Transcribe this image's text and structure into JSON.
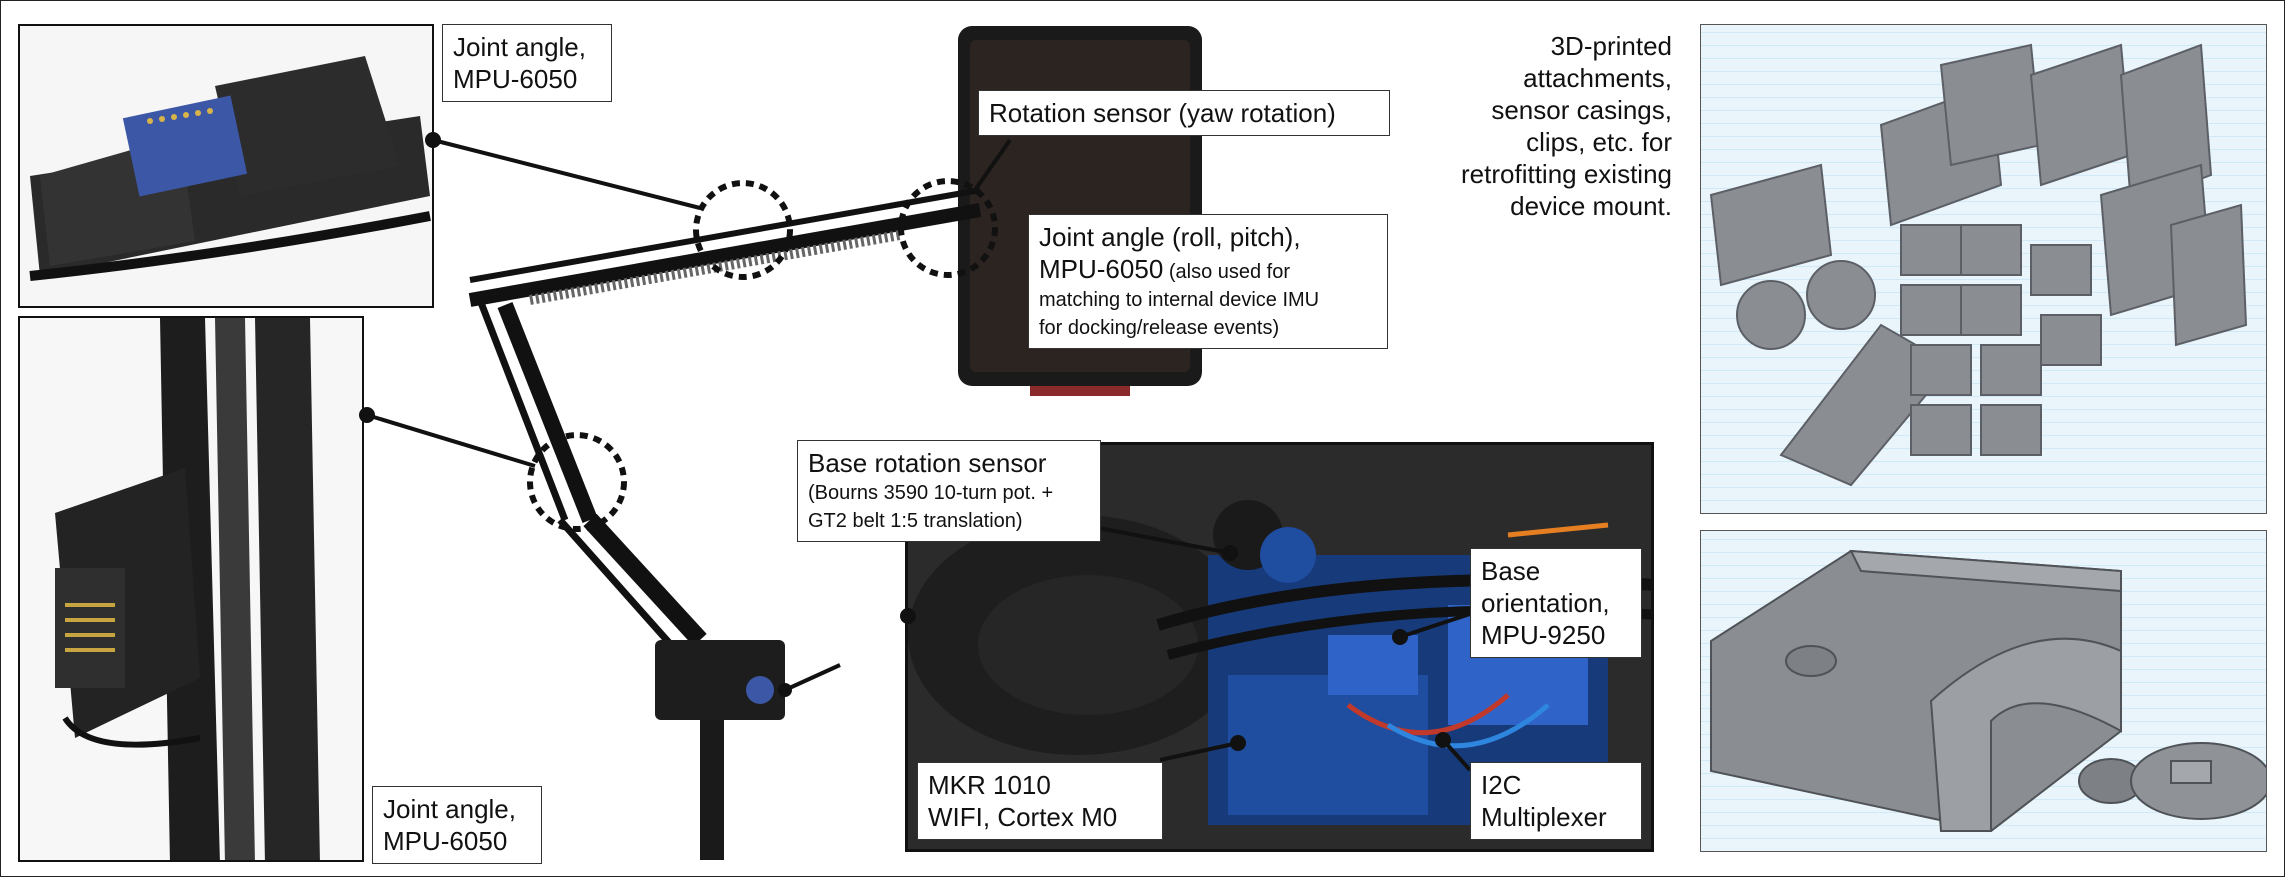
{
  "labels": {
    "joint_angle_top": {
      "line1": "Joint angle,",
      "line2": "MPU-6050"
    },
    "rotation_sensor": "Rotation sensor (yaw rotation)",
    "joint_angle_roll_pitch": {
      "line1": "Joint angle (roll, pitch),",
      "line2a": "MPU-6050",
      "line2b": " (also used for",
      "line3": "matching to internal device IMU",
      "line4": "for docking/release events)"
    },
    "base_rotation": {
      "line1": "Base rotation sensor",
      "line2": "(Bourns 3590 10-turn pot. +",
      "line3": "GT2 belt 1:5 translation)"
    },
    "base_orientation": {
      "line1": "Base",
      "line2": "orientation,",
      "line3": "MPU-9250"
    },
    "mkr1010": {
      "line1": "MKR 1010",
      "line2": "WIFI, Cortex M0"
    },
    "i2c": {
      "line1": "I2C",
      "line2": "Multiplexer"
    },
    "joint_angle_bottom": {
      "line1": "Joint angle,",
      "line2": "MPU-6050"
    }
  },
  "note": {
    "line1": "3D-printed",
    "line2": "attachments,",
    "line3": "sensor casings,",
    "line4": "clips, etc. for",
    "line5": "retrofitting existing",
    "line6": "device mount."
  },
  "colors": {
    "background": "#ffffff",
    "line": "#111111",
    "print_plastic": "#8a8e93",
    "grid_blue": "#cfe9f6",
    "board_blue": "#2f63c8",
    "tablet": "#1a1a1a"
  }
}
